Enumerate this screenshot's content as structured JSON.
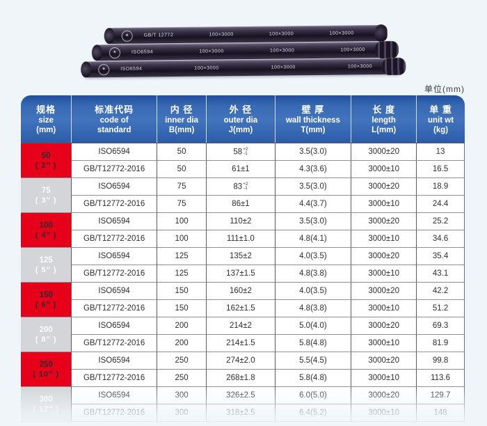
{
  "page": {
    "unit_note": "单位(mm)",
    "colors": {
      "accent_red": "#e60019",
      "row_gray": "#d3d5d8",
      "header_blue": "#386ab3"
    }
  },
  "pipes": [
    {
      "marking": "GB/T 12772",
      "repeats": [
        "100×3000",
        "100×3000",
        "100×3000"
      ]
    },
    {
      "marking": "ISO6594",
      "repeats": [
        "100×3000",
        "100×3000",
        "100×3000"
      ]
    },
    {
      "marking": "ISO6594",
      "repeats": [
        "100×3000",
        "100×3000",
        "100×3000"
      ]
    }
  ],
  "table": {
    "headers": [
      {
        "lines": [
          "规格",
          "size",
          "(mm)"
        ]
      },
      {
        "lines": [
          "标准代码",
          "code of",
          "standard"
        ]
      },
      {
        "lines": [
          "内 径",
          "inner dia",
          "B(mm)"
        ]
      },
      {
        "lines": [
          "外 径",
          "outer dia",
          "J(mm)"
        ]
      },
      {
        "lines": [
          "壁 厚",
          "wall thickness",
          "T(mm)"
        ]
      },
      {
        "lines": [
          "长 度",
          "length",
          "L(mm)"
        ]
      },
      {
        "lines": [
          "单 重",
          "unit wt",
          "(kg)"
        ]
      }
    ],
    "groups": [
      {
        "size": "50",
        "inch": "( 2″ )",
        "color": "red",
        "rows": [
          {
            "standard": "ISO6594",
            "inner": "50",
            "outer": "58",
            "outer_sup": "+2",
            "outer_sub": "-1",
            "wall": "3.5(3.0)",
            "length": "3000±20",
            "weight": "13"
          },
          {
            "standard": "GB/T12772-2016",
            "inner": "50",
            "outer": "61±1",
            "wall": "4.3(3.6)",
            "length": "3000±10",
            "weight": "16.5"
          }
        ]
      },
      {
        "size": "75",
        "inch": "( 3″ )",
        "color": "gray",
        "rows": [
          {
            "standard": "ISO6594",
            "inner": "75",
            "outer": "83",
            "outer_sup": "+2",
            "outer_sub": "-1",
            "wall": "3.5(3.0)",
            "length": "3000±20",
            "weight": "18.9"
          },
          {
            "standard": "GB/T12772-2016",
            "inner": "75",
            "outer": "86±1",
            "wall": "4.4(3.7)",
            "length": "3000±10",
            "weight": "24.4"
          }
        ]
      },
      {
        "size": "100",
        "inch": "( 4″ )",
        "color": "red",
        "rows": [
          {
            "standard": "ISO6594",
            "inner": "100",
            "outer": "110±2",
            "wall": "3.5(3.0)",
            "length": "3000±20",
            "weight": "25.2"
          },
          {
            "standard": "GB/T12772-2016",
            "inner": "100",
            "outer": "111±1.0",
            "wall": "4.8(4.1)",
            "length": "3000±10",
            "weight": "34.6"
          }
        ]
      },
      {
        "size": "125",
        "inch": "( 5″ )",
        "color": "gray",
        "rows": [
          {
            "standard": "ISO6594",
            "inner": "125",
            "outer": "135±2",
            "wall": "4.0(3.5)",
            "length": "3000±20",
            "weight": "35.4"
          },
          {
            "standard": "GB/T12772-2016",
            "inner": "125",
            "outer": "137±1.5",
            "wall": "4.8(3.8)",
            "length": "3000±10",
            "weight": "43.1"
          }
        ]
      },
      {
        "size": "150",
        "inch": "( 6″ )",
        "color": "red",
        "rows": [
          {
            "standard": "ISO6594",
            "inner": "150",
            "outer": "160±2",
            "wall": "4.0(3.5)",
            "length": "3000±20",
            "weight": "42.2"
          },
          {
            "standard": "GB/T12772-2016",
            "inner": "150",
            "outer": "162±1.5",
            "wall": "4.8(3.8)",
            "length": "3000±10",
            "weight": "51.2"
          }
        ]
      },
      {
        "size": "200",
        "inch": "( 8″ )",
        "color": "gray",
        "rows": [
          {
            "standard": "ISO6594",
            "inner": "200",
            "outer": "214±2",
            "wall": "5.0(4.0)",
            "length": "3000±20",
            "weight": "69.3"
          },
          {
            "standard": "GB/T12772-2016",
            "inner": "200",
            "outer": "214±1.5",
            "wall": "5.8(4.8)",
            "length": "3000±10",
            "weight": "81.9"
          }
        ]
      },
      {
        "size": "250",
        "inch": "( 10″ )",
        "color": "red",
        "rows": [
          {
            "standard": "ISO6594",
            "inner": "250",
            "outer": "274±2.0",
            "wall": "5.5(4.5)",
            "length": "3000±20",
            "weight": "99.8"
          },
          {
            "standard": "GB/T12772-2016",
            "inner": "250",
            "outer": "268±1.8",
            "wall": "5.8(4.8)",
            "length": "3000±10",
            "weight": "113.6"
          }
        ]
      },
      {
        "size": "300",
        "inch": "( 12″ )",
        "color": "gray",
        "rows": [
          {
            "standard": "ISO6594",
            "inner": "300",
            "outer": "326±2.5",
            "wall": "6.0(5.0)",
            "length": "3000±20",
            "weight": "129.7"
          },
          {
            "standard": "GB/T12772-2016",
            "inner": "300",
            "outer": "318±2.5",
            "wall": "6.4(5.2)",
            "length": "3000±10",
            "weight": "148"
          }
        ]
      }
    ]
  }
}
